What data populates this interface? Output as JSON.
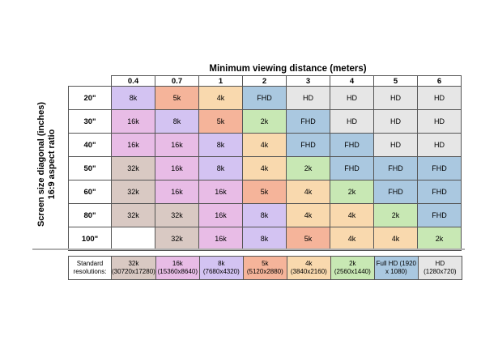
{
  "title": "Minimum viewing distance (meters)",
  "y_label_line1": "Screen size diagonal (inches)",
  "y_label_line2": "16:9 aspect ratio",
  "columns": [
    "0.4",
    "0.7",
    "1",
    "2",
    "3",
    "4",
    "5",
    "6"
  ],
  "rows": [
    {
      "size": "20\"",
      "cells": [
        "8k",
        "5k",
        "4k",
        "FHD",
        "HD",
        "HD",
        "HD",
        "HD"
      ]
    },
    {
      "size": "30\"",
      "cells": [
        "16k",
        "8k",
        "5k",
        "2k",
        "FHD",
        "HD",
        "HD",
        "HD"
      ]
    },
    {
      "size": "40\"",
      "cells": [
        "16k",
        "16k",
        "8k",
        "4k",
        "FHD",
        "FHD",
        "HD",
        "HD"
      ]
    },
    {
      "size": "50\"",
      "cells": [
        "32k",
        "16k",
        "8k",
        "4k",
        "2k",
        "FHD",
        "FHD",
        "FHD"
      ]
    },
    {
      "size": "60\"",
      "cells": [
        "32k",
        "16k",
        "16k",
        "5k",
        "4k",
        "2k",
        "FHD",
        "FHD"
      ]
    },
    {
      "size": "80\"",
      "cells": [
        "32k",
        "32k",
        "16k",
        "8k",
        "4k",
        "4k",
        "2k",
        "FHD"
      ]
    },
    {
      "size": "100\"",
      "cells": [
        "",
        "32k",
        "16k",
        "8k",
        "5k",
        "4k",
        "4k",
        "2k"
      ]
    }
  ],
  "colors": {
    "32k": "#d9c9c3",
    "16k": "#e8bce6",
    "8k": "#d3c3f2",
    "5k": "#f5b49a",
    "4k": "#f9d9ae",
    "2k": "#c8e8b4",
    "FHD": "#aac8e0",
    "HD": "#e6e6e6",
    "": "#ffffff"
  },
  "legend_label": "Standard resolutions:",
  "legend": [
    {
      "key": "32k",
      "text": "32k (30720x17280)"
    },
    {
      "key": "16k",
      "text": "16k (15360x8640)"
    },
    {
      "key": "8k",
      "text": "8k (7680x4320)"
    },
    {
      "key": "5k",
      "text": "5k (5120x2880)"
    },
    {
      "key": "4k",
      "text": "4k (3840x2160)"
    },
    {
      "key": "2k",
      "text": "2k (2560x1440)"
    },
    {
      "key": "FHD",
      "text": "Full HD (1920 x 1080)"
    },
    {
      "key": "HD",
      "text": "HD (1280x720)"
    }
  ]
}
